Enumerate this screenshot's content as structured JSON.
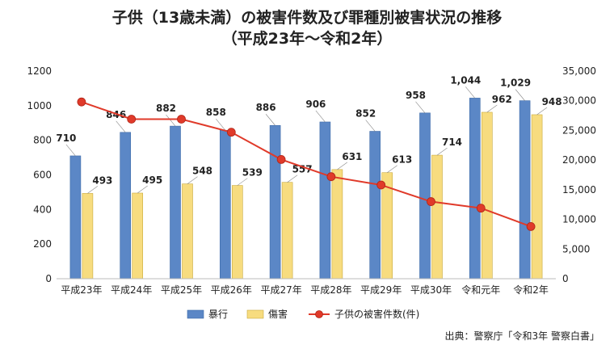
{
  "chart_data": {
    "type": "bar",
    "title": "子供（13歳未満）の被害件数及び罪種別被害状況の推移",
    "subtitle": "（平成23年～令和2年）",
    "categories": [
      "平成23年",
      "平成24年",
      "平成25年",
      "平成26年",
      "平成27年",
      "平成28年",
      "平成29年",
      "平成30年",
      "令和元年",
      "令和2年"
    ],
    "series": [
      {
        "name": "暴行",
        "type": "bar",
        "axis": "left",
        "color": "#5b87c6",
        "values": [
          710,
          846,
          882,
          858,
          886,
          906,
          852,
          958,
          1044,
          1029
        ],
        "labels": [
          "710",
          "846",
          "882",
          "858",
          "886",
          "906",
          "852",
          "958",
          "1,044",
          "1,029"
        ]
      },
      {
        "name": "傷害",
        "type": "bar",
        "axis": "left",
        "color": "#f7dc7f",
        "values": [
          493,
          495,
          548,
          539,
          557,
          631,
          613,
          714,
          962,
          948
        ],
        "labels": [
          "493",
          "495",
          "548",
          "539",
          "557",
          "631",
          "613",
          "714",
          "962",
          "948"
        ]
      },
      {
        "name": "子供の被害件数(件)",
        "type": "line",
        "axis": "right",
        "color": "#e03a2a",
        "values": [
          29800,
          26900,
          26900,
          24700,
          20100,
          17200,
          15800,
          13000,
          11900,
          8800
        ]
      }
    ],
    "y_left": {
      "min": 0,
      "max": 1200,
      "ticks": [
        "0",
        "200",
        "400",
        "600",
        "800",
        "1000",
        "1200"
      ]
    },
    "y_right": {
      "min": 0,
      "max": 35000,
      "ticks": [
        "0",
        "5,000",
        "10,000",
        "15,000",
        "20,000",
        "25,000",
        "30,000",
        "35,000"
      ]
    },
    "grid": false,
    "legend_position": "bottom"
  },
  "source": "出典：警察庁「令和3年 警察白書」"
}
